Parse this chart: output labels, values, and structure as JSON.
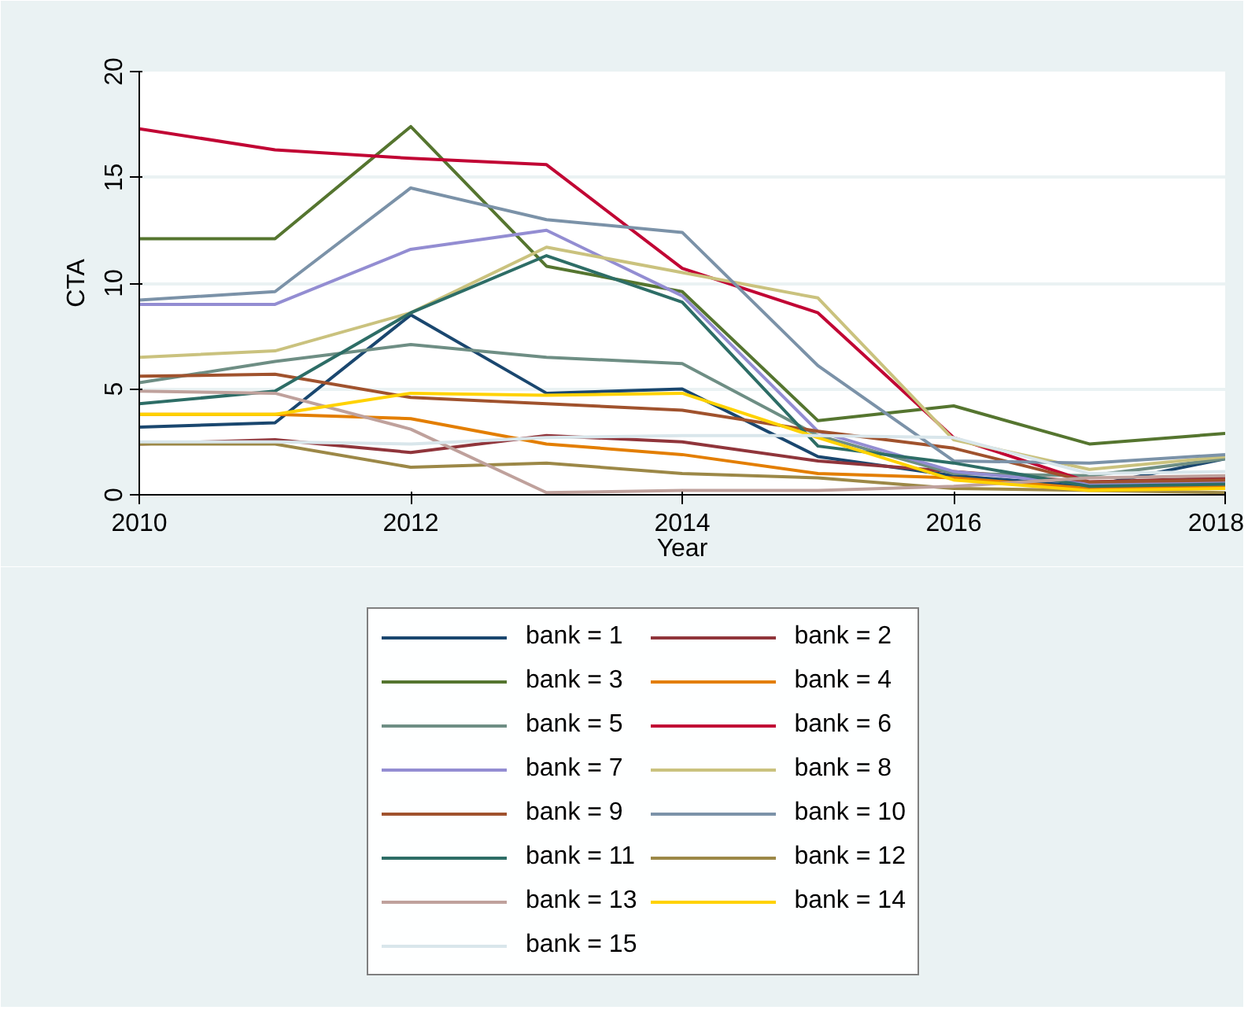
{
  "chart_data": {
    "type": "line",
    "xlabel": "Year",
    "ylabel": "CTA",
    "x": [
      2010,
      2011,
      2012,
      2013,
      2014,
      2015,
      2016,
      2017,
      2018
    ],
    "xlim": [
      2010,
      2018
    ],
    "xticks": [
      2010,
      2012,
      2014,
      2016,
      2018
    ],
    "ylim": [
      0,
      20
    ],
    "yticks": [
      0,
      5,
      10,
      15,
      20
    ],
    "grid": "y",
    "legend": "bottom",
    "line_style": "solid",
    "marker": "none",
    "series": [
      {
        "name": "bank = 1",
        "color": "#1a476f",
        "values": [
          3.2,
          3.4,
          8.5,
          4.8,
          5.0,
          1.8,
          0.9,
          0.4,
          1.7
        ]
      },
      {
        "name": "bank = 2",
        "color": "#90353b",
        "values": [
          2.4,
          2.6,
          2.0,
          2.8,
          2.5,
          1.6,
          1.1,
          0.6,
          0.8
        ]
      },
      {
        "name": "bank = 3",
        "color": "#55752f",
        "values": [
          12.1,
          12.1,
          17.4,
          10.8,
          9.6,
          3.5,
          4.2,
          2.4,
          2.9
        ]
      },
      {
        "name": "bank = 4",
        "color": "#e37e00",
        "values": [
          3.8,
          3.8,
          3.6,
          2.4,
          1.9,
          1.0,
          0.8,
          0.3,
          0.4
        ]
      },
      {
        "name": "bank = 5",
        "color": "#6e8e84",
        "values": [
          5.3,
          6.3,
          7.1,
          6.5,
          6.2,
          2.8,
          1.0,
          0.9,
          1.7
        ]
      },
      {
        "name": "bank = 6",
        "color": "#c10534",
        "values": [
          17.3,
          16.3,
          15.9,
          15.6,
          10.7,
          8.6,
          2.7,
          0.6,
          0.7
        ]
      },
      {
        "name": "bank = 7",
        "color": "#938dd2",
        "values": [
          9.0,
          9.0,
          11.6,
          12.5,
          9.4,
          3.0,
          1.1,
          0.5,
          0.6
        ]
      },
      {
        "name": "bank = 8",
        "color": "#cac27e",
        "values": [
          6.5,
          6.8,
          8.6,
          11.7,
          10.5,
          9.3,
          2.6,
          1.2,
          1.8
        ]
      },
      {
        "name": "bank = 9",
        "color": "#a0522d",
        "values": [
          5.6,
          5.7,
          4.6,
          4.3,
          4.0,
          3.0,
          2.2,
          0.6,
          0.7
        ]
      },
      {
        "name": "bank = 10",
        "color": "#7b92a8",
        "values": [
          9.2,
          9.6,
          14.5,
          13.0,
          12.4,
          6.1,
          1.6,
          1.5,
          1.9
        ]
      },
      {
        "name": "bank = 11",
        "color": "#2d6d66",
        "values": [
          4.3,
          4.9,
          8.6,
          11.3,
          9.1,
          2.3,
          1.5,
          0.4,
          0.5
        ]
      },
      {
        "name": "bank = 12",
        "color": "#9c8847",
        "values": [
          2.4,
          2.4,
          1.3,
          1.5,
          1.0,
          0.8,
          0.3,
          0.2,
          0.1
        ]
      },
      {
        "name": "bank = 13",
        "color": "#bfa19c",
        "values": [
          4.9,
          4.8,
          3.1,
          0.1,
          0.2,
          0.2,
          0.4,
          0.8,
          0.9
        ]
      },
      {
        "name": "bank = 14",
        "color": "#ffd200",
        "values": [
          3.8,
          3.8,
          4.8,
          4.7,
          4.8,
          2.7,
          0.7,
          0.2,
          0.3
        ]
      },
      {
        "name": "bank = 15",
        "color": "#d9e6eb",
        "values": [
          2.5,
          2.5,
          2.4,
          2.7,
          2.8,
          2.8,
          2.7,
          1.0,
          1.1
        ]
      }
    ]
  }
}
